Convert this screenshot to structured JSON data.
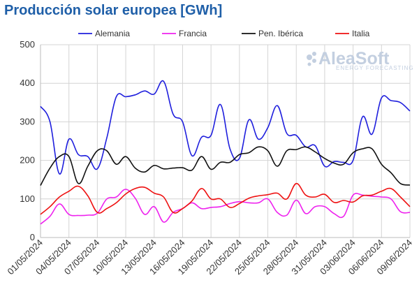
{
  "chart_data": {
    "type": "line",
    "title": "Producción solar europea [GWh]",
    "xlabel": "",
    "ylabel": "",
    "ylim": [
      0,
      500
    ],
    "yticks": [
      0,
      100,
      200,
      300,
      400,
      500
    ],
    "grid": true,
    "legend_position": "top",
    "x": [
      "01/05/2024",
      "02/05/2024",
      "03/05/2024",
      "04/05/2024",
      "05/05/2024",
      "06/05/2024",
      "07/05/2024",
      "08/05/2024",
      "09/05/2024",
      "10/05/2024",
      "11/05/2024",
      "12/05/2024",
      "13/05/2024",
      "14/05/2024",
      "15/05/2024",
      "16/05/2024",
      "17/05/2024",
      "18/05/2024",
      "19/05/2024",
      "20/05/2024",
      "21/05/2024",
      "22/05/2024",
      "23/05/2024",
      "24/05/2024",
      "25/05/2024",
      "26/05/2024",
      "27/05/2024",
      "28/05/2024",
      "29/05/2024",
      "30/05/2024",
      "31/05/2024",
      "01/06/2024",
      "02/06/2024",
      "03/06/2024",
      "04/06/2024",
      "05/06/2024",
      "06/06/2024",
      "07/06/2024",
      "08/06/2024",
      "09/06/2024"
    ],
    "tick_labels": [
      "01/05/2024",
      "04/05/2024",
      "07/05/2024",
      "10/05/2024",
      "13/05/2024",
      "16/05/2024",
      "19/05/2024",
      "22/05/2024",
      "25/05/2024",
      "28/05/2024",
      "31/05/2024",
      "03/06/2024",
      "06/06/2024",
      "09/06/2024"
    ],
    "series": [
      {
        "name": "Alemania",
        "color": "#1f1fdd",
        "values": [
          340,
          300,
          165,
          255,
          215,
          210,
          178,
          258,
          365,
          365,
          370,
          380,
          372,
          405,
          320,
          300,
          212,
          260,
          265,
          345,
          230,
          205,
          305,
          255,
          285,
          342,
          270,
          265,
          235,
          238,
          185,
          197,
          195,
          200,
          313,
          268,
          362,
          355,
          350,
          328
        ]
      },
      {
        "name": "Francia",
        "color": "#ee22ee",
        "values": [
          35,
          55,
          87,
          60,
          57,
          58,
          63,
          100,
          105,
          125,
          102,
          60,
          80,
          40,
          65,
          75,
          90,
          75,
          78,
          80,
          88,
          93,
          90,
          90,
          100,
          65,
          58,
          97,
          62,
          80,
          80,
          62,
          55,
          110,
          110,
          107,
          105,
          100,
          67,
          65
        ]
      },
      {
        "name": "Pen. Ibérica",
        "color": "#111111",
        "values": [
          135,
          180,
          210,
          210,
          140,
          185,
          225,
          225,
          190,
          210,
          180,
          170,
          187,
          178,
          180,
          181,
          175,
          210,
          177,
          195,
          195,
          215,
          220,
          235,
          225,
          185,
          225,
          228,
          235,
          222,
          205,
          193,
          190,
          220,
          230,
          230,
          190,
          168,
          140,
          136
        ]
      },
      {
        "name": "Italia",
        "color": "#ee1111",
        "values": [
          60,
          80,
          105,
          120,
          133,
          108,
          65,
          75,
          90,
          113,
          127,
          130,
          115,
          105,
          65,
          75,
          95,
          127,
          100,
          100,
          78,
          88,
          102,
          108,
          111,
          115,
          100,
          140,
          110,
          105,
          112,
          91,
          96,
          92,
          108,
          110,
          120,
          127,
          105,
          80
        ]
      }
    ]
  },
  "logo": {
    "name": "AleaSoft",
    "tagline": "ENERGY FORECASTING"
  }
}
